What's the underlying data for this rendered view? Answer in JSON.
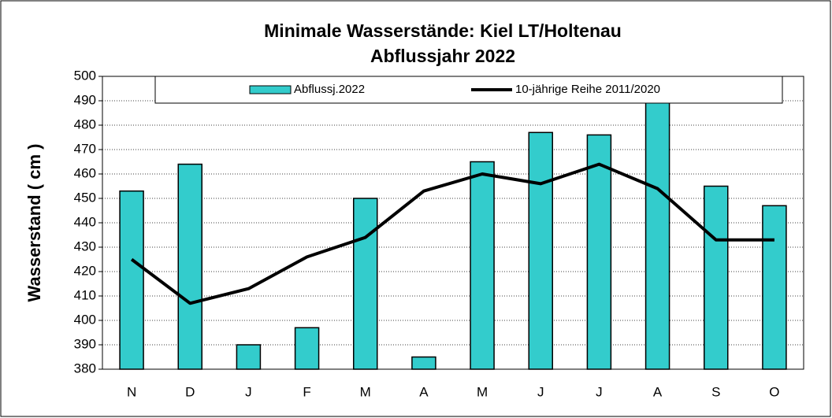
{
  "chart_data": {
    "type": "bar",
    "title": "Minimale Wasserstände: Kiel LT/Holtenau",
    "subtitle": "Abflussjahr 2022",
    "y_label": "Wasserstand ( cm )",
    "categories": [
      "N",
      "D",
      "J",
      "F",
      "M",
      "A",
      "M",
      "J",
      "J",
      "A",
      "S",
      "O"
    ],
    "series": [
      {
        "name": "Abflussj.2022",
        "type": "bar",
        "color": "#33cccc",
        "values": [
          453,
          464,
          390,
          397,
          450,
          385,
          465,
          477,
          476,
          490,
          455,
          447
        ]
      },
      {
        "name": "10-jährige Reihe  2011/2020",
        "type": "line",
        "color": "#000000",
        "values": [
          425,
          407,
          413,
          426,
          434,
          453,
          460,
          456,
          464,
          454,
          433,
          433
        ]
      }
    ],
    "ylim": [
      380,
      500
    ],
    "yticks": [
      380,
      390,
      400,
      410,
      420,
      430,
      440,
      450,
      460,
      470,
      480,
      490,
      500
    ],
    "grid": true,
    "legend": "top"
  }
}
